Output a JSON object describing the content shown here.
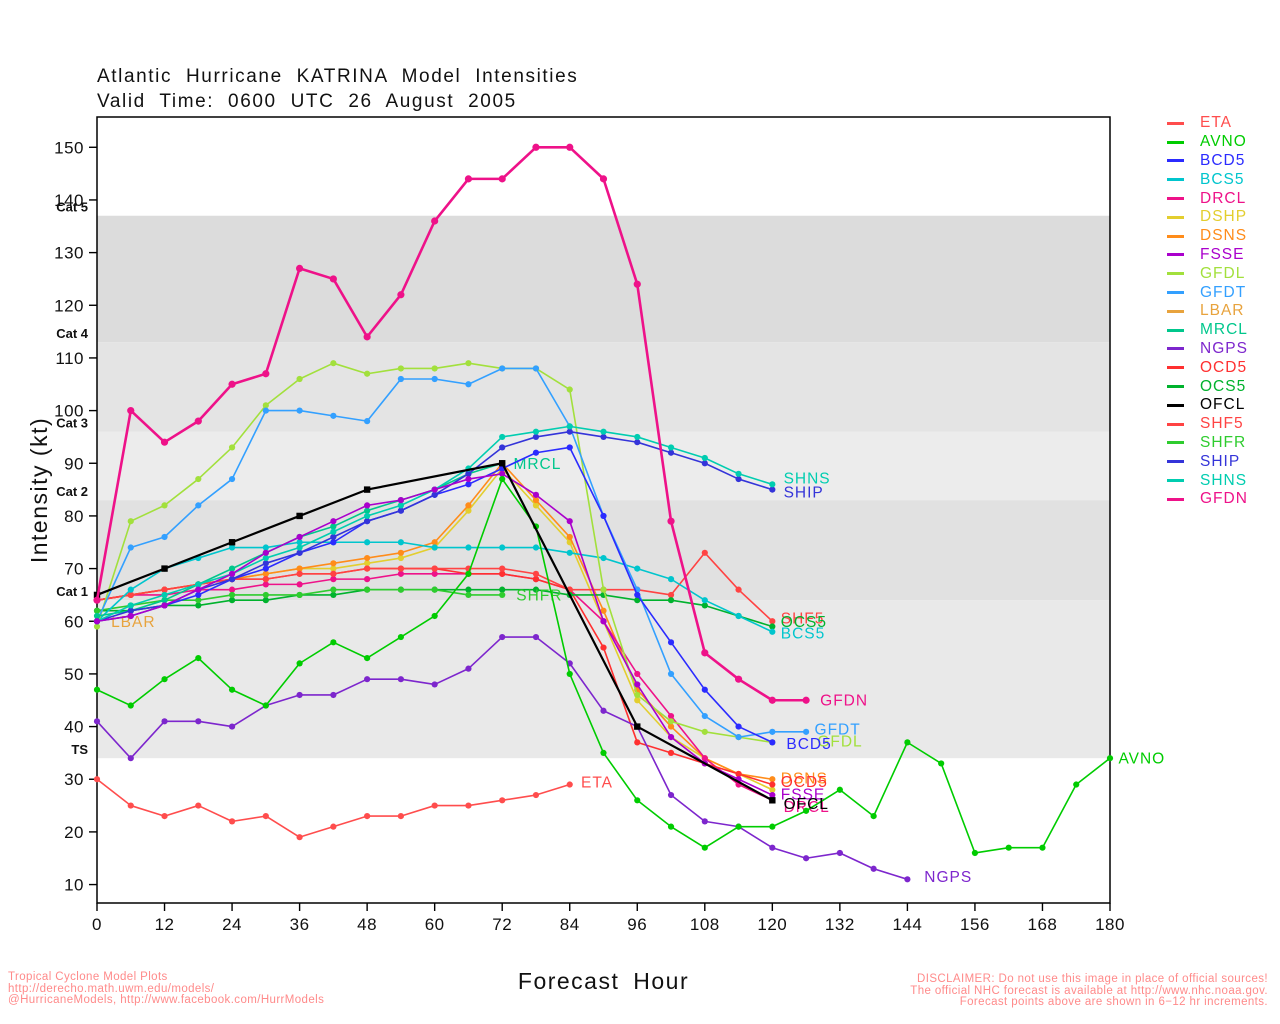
{
  "footer": {
    "left": [
      "Tropical Cyclone Model Plots",
      "http://derecho.math.uwm.edu/models/",
      "@HurricaneModels, http://www.facebook.com/HurrModels"
    ],
    "right": [
      "DISCLAIMER: Do not use this image in place of official sources!",
      "The official NHC forecast is available at http://www.nhc.noaa.gov.",
      "Forecast points above are shown in 6−12 hr increments."
    ]
  },
  "chart_data": {
    "type": "line",
    "title": "Atlantic Hurricane KATRINA Model Intensities",
    "subtitle": "Valid Time: 0600 UTC 26 August 2005",
    "xlabel": "Forecast Hour",
    "ylabel": "Intensity (kt)",
    "xlim": [
      0,
      180
    ],
    "ylim": [
      6.5,
      155.75
    ],
    "x_ticks": [
      0,
      12,
      24,
      36,
      48,
      60,
      72,
      84,
      96,
      108,
      120,
      132,
      144,
      156,
      168,
      180
    ],
    "y_ticks": [
      10,
      20,
      30,
      40,
      50,
      60,
      70,
      80,
      90,
      100,
      110,
      120,
      130,
      140,
      150
    ],
    "grid": false,
    "legend_position": "right-outside",
    "bands": [
      {
        "label": "TS",
        "from": 34,
        "to": 64,
        "color": "#E9E9E9"
      },
      {
        "label": "Cat 1",
        "from": 64,
        "to": 83,
        "color": "#E1E1E1"
      },
      {
        "label": "Cat 2",
        "from": 83,
        "to": 96,
        "color": "#ECECEC"
      },
      {
        "label": "Cat 3",
        "from": 96,
        "to": 113,
        "color": "#E4E4E4"
      },
      {
        "label": "Cat 4",
        "from": 113,
        "to": 137,
        "color": "#DCDCDC"
      },
      {
        "label": "Cat 5",
        "from": 137,
        "to": 155.75,
        "color": "#FFFFFF"
      }
    ],
    "legend": [
      {
        "label": "ETA",
        "color": "#FF4D4D"
      },
      {
        "label": "AVNO",
        "color": "#00CC00"
      },
      {
        "label": "BCD5",
        "color": "#2B2BFF"
      },
      {
        "label": "BCS5",
        "color": "#00C5CD"
      },
      {
        "label": "DRCL",
        "color": "#EE1289"
      },
      {
        "label": "DSHP",
        "color": "#E3CE2E"
      },
      {
        "label": "DSNS",
        "color": "#FF8C1A"
      },
      {
        "label": "FSSE",
        "color": "#AA00CC"
      },
      {
        "label": "GFDL",
        "color": "#A2E03C"
      },
      {
        "label": "GFDT",
        "color": "#33A0FF"
      },
      {
        "label": "LBAR",
        "color": "#E8A33D"
      },
      {
        "label": "MRCL",
        "color": "#00C78C"
      },
      {
        "label": "NGPS",
        "color": "#7D26CD"
      },
      {
        "label": "OCD5",
        "color": "#FF3030"
      },
      {
        "label": "OCS5",
        "color": "#00B22D"
      },
      {
        "label": "OFCL",
        "color": "#000000"
      },
      {
        "label": "SHF5",
        "color": "#FF4343"
      },
      {
        "label": "SHFR",
        "color": "#2ECC2E"
      },
      {
        "label": "SHIP",
        "color": "#3434D9"
      },
      {
        "label": "SHNS",
        "color": "#00CDB0"
      },
      {
        "label": "GFDN",
        "color": "#EE1289"
      }
    ],
    "x_unit": "forecast hour",
    "y_unit": "kt",
    "series": [
      {
        "name": "LBAR",
        "color": "#E8A33D",
        "start": 0,
        "step": 6,
        "values": [
          60,
          61
        ],
        "end_label": {
          "text": "LBAR",
          "hr": 2.5,
          "kt": 60
        }
      },
      {
        "name": "DSHP",
        "color": "#E3CE2E",
        "start": 0,
        "step": 6,
        "values": [
          64,
          65,
          66,
          67,
          68,
          69,
          70,
          70,
          71,
          72,
          74,
          81,
          89,
          82,
          75,
          60,
          45,
          38,
          34,
          31,
          28
        ]
      },
      {
        "name": "DSNS",
        "color": "#FF8C1A",
        "start": 0,
        "step": 6,
        "values": [
          64,
          65,
          66,
          67,
          68,
          69,
          70,
          71,
          72,
          73,
          75,
          82,
          90,
          83,
          76,
          62,
          47,
          40,
          34,
          31,
          30
        ],
        "end_label": {
          "text": "DSNS",
          "hr": 121.5,
          "kt": 30.2
        }
      },
      {
        "name": "DRCL",
        "color": "#EE1289",
        "start": 0,
        "step": 6,
        "values": [
          64,
          65,
          65,
          66,
          66,
          67,
          67,
          68,
          68,
          69,
          69,
          69,
          69,
          68,
          66,
          60,
          50,
          42,
          34,
          29,
          26
        ],
        "end_label": {
          "text": "DRCL",
          "hr": 122,
          "kt": 24.8
        }
      },
      {
        "name": "OCD5",
        "color": "#FF3030",
        "start": 0,
        "step": 6,
        "values": [
          64,
          65,
          66,
          67,
          68,
          68,
          69,
          69,
          70,
          70,
          70,
          69,
          69,
          68,
          66,
          55,
          37,
          35,
          33,
          31,
          29
        ],
        "end_label": {
          "text": "OCD5",
          "hr": 121.5,
          "kt": 29.6
        }
      },
      {
        "name": "SHF5",
        "color": "#FF4343",
        "start": 0,
        "step": 6,
        "values": [
          64,
          65,
          66,
          67,
          68,
          68,
          69,
          69,
          70,
          70,
          70,
          70,
          70,
          69,
          66,
          66,
          66,
          65,
          73,
          66,
          60
        ],
        "end_label": {
          "text": "SHF5",
          "hr": 121.5,
          "kt": 60.6
        }
      },
      {
        "name": "OCS5",
        "color": "#00B22D",
        "start": 0,
        "step": 6,
        "values": [
          62,
          62,
          63,
          63,
          64,
          64,
          65,
          65,
          66,
          66,
          66,
          66,
          66,
          66,
          65,
          65,
          64,
          64,
          63,
          61,
          59
        ],
        "end_label": {
          "text": "OCS5",
          "hr": 121.5,
          "kt": 60
        }
      },
      {
        "name": "SHFR",
        "color": "#2ECC2E",
        "start": 0,
        "step": 6,
        "values": [
          62,
          63,
          64,
          64,
          65,
          65,
          65,
          66,
          66,
          66,
          66,
          65,
          65
        ],
        "end_label": {
          "text": "SHFR",
          "hr": 74.5,
          "kt": 65
        }
      },
      {
        "name": "BCS5",
        "color": "#00C5CD",
        "start": 0,
        "step": 6,
        "values": [
          60,
          66,
          70,
          72,
          74,
          74,
          75,
          75,
          75,
          75,
          74,
          74,
          74,
          74,
          73,
          72,
          70,
          68,
          64,
          61,
          58
        ],
        "end_label": {
          "text": "BCS5",
          "hr": 121.5,
          "kt": 57.8
        }
      },
      {
        "name": "GFDL",
        "color": "#A2E03C",
        "start": 0,
        "step": 6,
        "values": [
          59,
          79,
          82,
          87,
          93,
          101,
          106,
          109,
          107,
          108,
          108,
          109,
          108,
          108,
          104,
          66,
          46,
          41,
          39,
          38,
          37
        ],
        "end_label": {
          "text": "GFDL",
          "hr": 128,
          "kt": 37.3
        }
      },
      {
        "name": "GFDT",
        "color": "#33A0FF",
        "start": 0,
        "step": 6,
        "values": [
          60,
          74,
          76,
          82,
          87,
          100,
          100,
          99,
          98,
          106,
          106,
          105,
          108,
          108,
          97,
          80,
          66,
          50,
          42,
          38,
          39,
          39
        ],
        "end_label": {
          "text": "GFDT",
          "hr": 127.5,
          "kt": 39.5
        }
      },
      {
        "name": "MRCL",
        "color": "#00C78C",
        "start": 0,
        "step": 6,
        "values": [
          61,
          62,
          64,
          67,
          70,
          73,
          76,
          78,
          81,
          83,
          85,
          88,
          90
        ],
        "end_label": {
          "text": "MRCL",
          "hr": 74,
          "kt": 90
        }
      },
      {
        "name": "BCD5",
        "color": "#2B2BFF",
        "start": 0,
        "step": 6,
        "values": [
          60,
          61,
          63,
          65,
          68,
          70,
          73,
          75,
          79,
          81,
          84,
          86,
          89,
          92,
          93,
          80,
          65,
          56,
          47,
          40,
          37
        ],
        "end_label": {
          "text": "BCD5",
          "hr": 122.5,
          "kt": 36.8
        }
      },
      {
        "name": "SHIP",
        "color": "#3434D9",
        "start": 0,
        "step": 6,
        "values": [
          60,
          62,
          63,
          66,
          68,
          71,
          73,
          76,
          79,
          81,
          84,
          88,
          93,
          95,
          96,
          95,
          94,
          92,
          90,
          87,
          85
        ],
        "end_label": {
          "text": "SHIP",
          "hr": 122,
          "kt": 84.5
        }
      },
      {
        "name": "SHNS",
        "color": "#00CDB0",
        "start": 0,
        "step": 6,
        "values": [
          60,
          63,
          65,
          67,
          69,
          72,
          74,
          77,
          80,
          82,
          85,
          89,
          95,
          96,
          97,
          96,
          95,
          93,
          91,
          88,
          86
        ],
        "end_label": {
          "text": "SHNS",
          "hr": 122,
          "kt": 87.2
        }
      },
      {
        "name": "FSSE",
        "color": "#AA00CC",
        "start": 0,
        "step": 6,
        "values": [
          60,
          61,
          63,
          66,
          69,
          73,
          76,
          79,
          82,
          83,
          85,
          87,
          88,
          84,
          79,
          60,
          48,
          38,
          33,
          30,
          27
        ],
        "end_label": {
          "text": "FSSE",
          "hr": 121.5,
          "kt": 27.2
        }
      },
      {
        "name": "NGPS",
        "color": "#7D26CD",
        "start": 0,
        "step": 6,
        "values": [
          41,
          34,
          41,
          41,
          40,
          44,
          46,
          46,
          49,
          49,
          48,
          51,
          57,
          57,
          52,
          43,
          40,
          27,
          22,
          21,
          17,
          15,
          16,
          13,
          11
        ],
        "end_label": {
          "text": "NGPS",
          "hr": 147,
          "kt": 11.5
        }
      },
      {
        "name": "ETA",
        "color": "#FF4D4D",
        "start": 0,
        "step": 6,
        "values": [
          30,
          25,
          23,
          25,
          22,
          23,
          19,
          21,
          23,
          23,
          25,
          25,
          26,
          27,
          29
        ],
        "end_label": {
          "text": "ETA",
          "hr": 86,
          "kt": 29.5
        }
      },
      {
        "name": "AVNO",
        "color": "#00CC00",
        "start": 0,
        "step": 6,
        "values": [
          47,
          44,
          49,
          53,
          47,
          44,
          52,
          56,
          53,
          57,
          61,
          69,
          87,
          78,
          50,
          35,
          26,
          21,
          17,
          21,
          21,
          24,
          28,
          23,
          37,
          33,
          16,
          17,
          17,
          29,
          34
        ],
        "end_label": {
          "text": "AVNO",
          "hr": 181.5,
          "kt": 34
        }
      },
      {
        "name": "OFCL",
        "color": "#000000",
        "width": 2.2,
        "marker": "square",
        "hours": [
          0,
          12,
          24,
          36,
          48,
          72,
          96,
          120
        ],
        "values": [
          65,
          70,
          75,
          80,
          85,
          90,
          40,
          26
        ],
        "end_label": {
          "text": "OFCL",
          "hr": 122,
          "kt": 25.4
        }
      },
      {
        "name": "GFDN",
        "color": "#EE1289",
        "width": 2.6,
        "start": 0,
        "step": 6,
        "values": [
          64,
          100,
          94,
          98,
          105,
          107,
          127,
          125,
          114,
          122,
          136,
          144,
          144,
          150,
          150,
          144,
          124,
          79,
          54,
          49,
          45,
          45
        ],
        "end_label": {
          "text": "GFDN",
          "hr": 128.5,
          "kt": 45
        }
      }
    ]
  }
}
